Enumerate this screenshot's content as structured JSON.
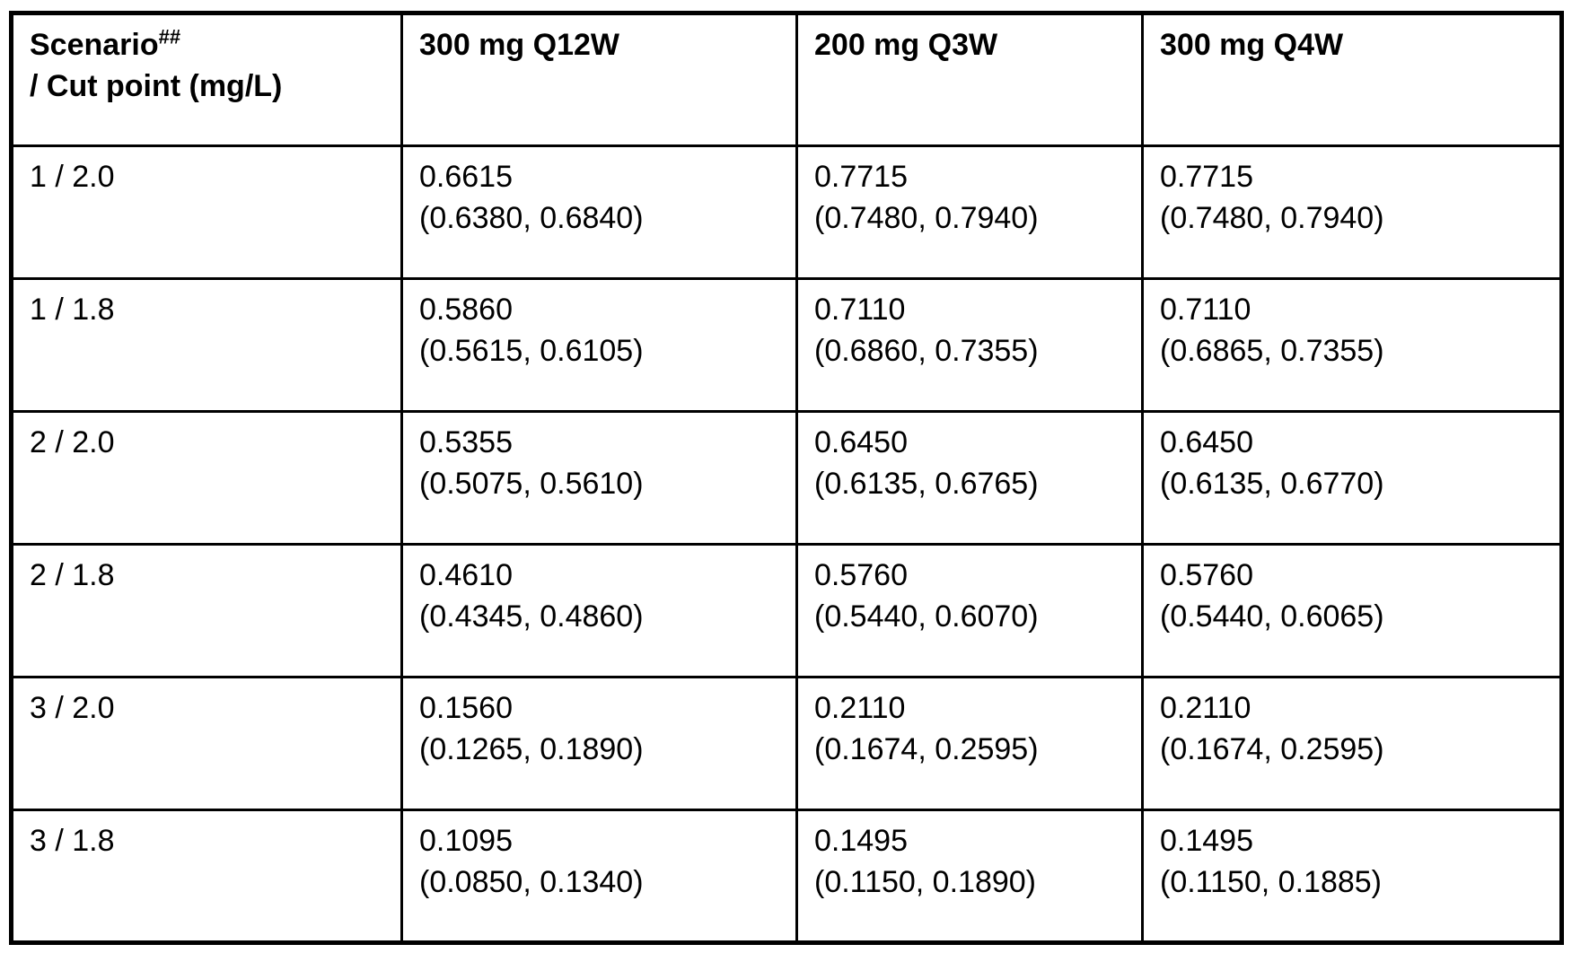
{
  "page": {
    "background_color": "#ffffff",
    "text_color": "#000000",
    "border_color": "#000000"
  },
  "table": {
    "header": {
      "scenario_title": "Scenario",
      "scenario_superscript": "##",
      "scenario_line2": "/ Cut point (mg/L)",
      "dose_columns": [
        "300 mg Q12W",
        "200 mg Q3W",
        "300 mg Q4W"
      ]
    },
    "rows": [
      {
        "scenario_cutpoint": "1 / 2.0",
        "cells": [
          {
            "value": "0.6615",
            "ci": "(0.6380, 0.6840)"
          },
          {
            "value": "0.7715",
            "ci": "(0.7480, 0.7940)"
          },
          {
            "value": "0.7715",
            "ci": "(0.7480, 0.7940)"
          }
        ]
      },
      {
        "scenario_cutpoint": "1 / 1.8",
        "cells": [
          {
            "value": "0.5860",
            "ci": "(0.5615, 0.6105)"
          },
          {
            "value": "0.7110",
            "ci": "(0.6860, 0.7355)"
          },
          {
            "value": "0.7110",
            "ci": "(0.6865, 0.7355)"
          }
        ]
      },
      {
        "scenario_cutpoint": "2 / 2.0",
        "cells": [
          {
            "value": "0.5355",
            "ci": "(0.5075, 0.5610)"
          },
          {
            "value": "0.6450",
            "ci": "(0.6135, 0.6765)"
          },
          {
            "value": "0.6450",
            "ci": "(0.6135, 0.6770)"
          }
        ]
      },
      {
        "scenario_cutpoint": "2 / 1.8",
        "cells": [
          {
            "value": "0.4610",
            "ci": "(0.4345, 0.4860)"
          },
          {
            "value": "0.5760",
            "ci": "(0.5440, 0.6070)"
          },
          {
            "value": "0.5760",
            "ci": "(0.5440, 0.6065)"
          }
        ]
      },
      {
        "scenario_cutpoint": "3 / 2.0",
        "cells": [
          {
            "value": "0.1560",
            "ci": "(0.1265, 0.1890)"
          },
          {
            "value": "0.2110",
            "ci": "(0.1674, 0.2595)"
          },
          {
            "value": "0.2110",
            "ci": "(0.1674, 0.2595)"
          }
        ]
      },
      {
        "scenario_cutpoint": "3 / 1.8",
        "cells": [
          {
            "value": "0.1095",
            "ci": "(0.0850, 0.1340)"
          },
          {
            "value": "0.1495",
            "ci": "(0.1150, 0.1890)"
          },
          {
            "value": "0.1495",
            "ci": "(0.1150, 0.1885)"
          }
        ]
      }
    ]
  }
}
